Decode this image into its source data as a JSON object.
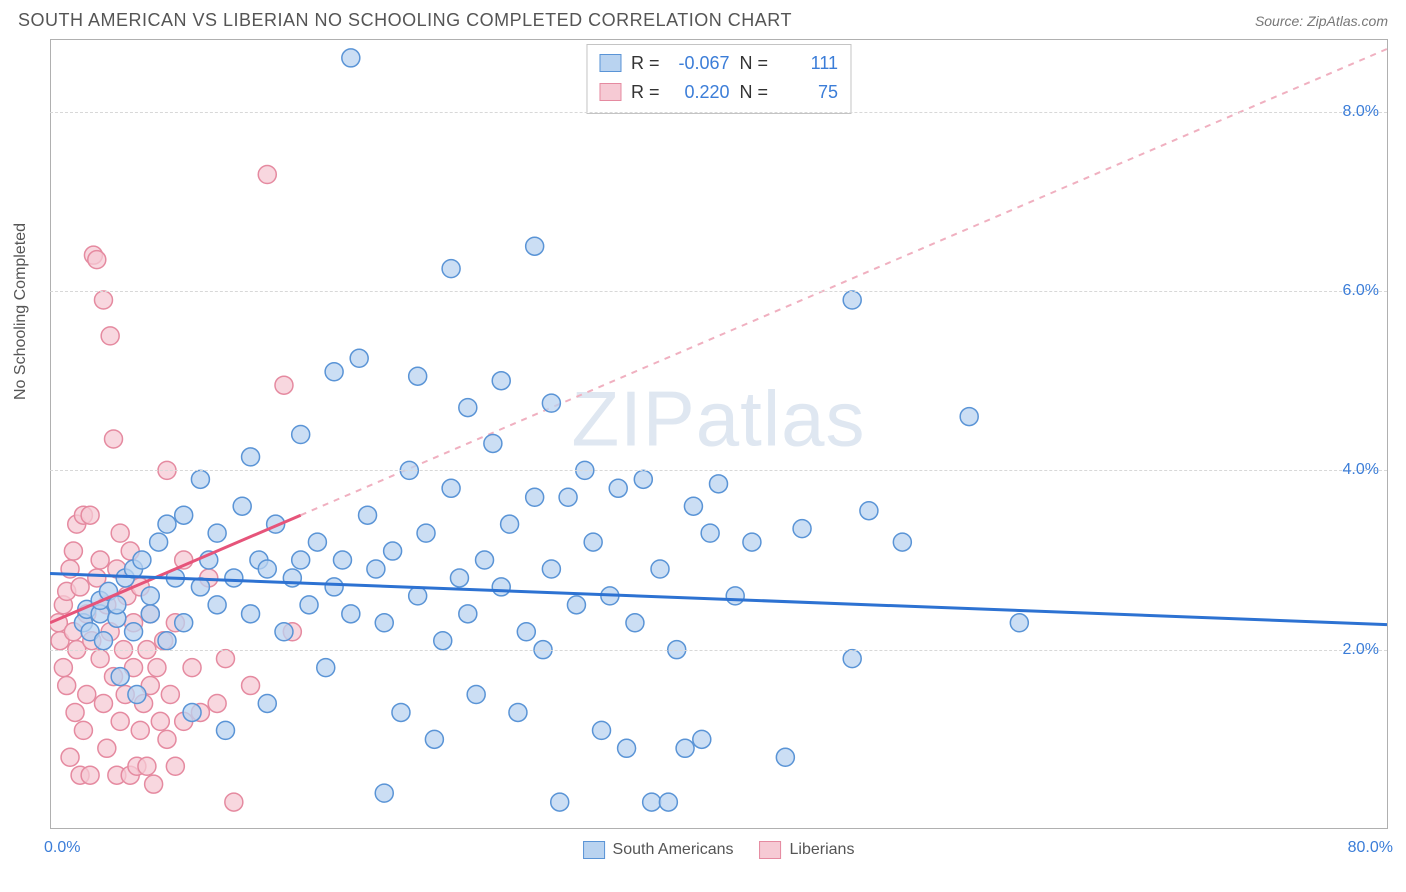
{
  "header": {
    "title": "SOUTH AMERICAN VS LIBERIAN NO SCHOOLING COMPLETED CORRELATION CHART",
    "source": "Source: ZipAtlas.com"
  },
  "watermark": {
    "zip": "ZIP",
    "atlas": "atlas"
  },
  "chart": {
    "type": "scatter",
    "ylabel": "No Schooling Completed",
    "background_color": "#ffffff",
    "grid_color": "#d8d8d8",
    "axis_color": "#b0b0b0",
    "tick_label_color": "#3b7dd8",
    "xlim": [
      0,
      80
    ],
    "ylim": [
      0,
      8.8
    ],
    "yticks": [
      {
        "v": 2.0,
        "label": "2.0%"
      },
      {
        "v": 4.0,
        "label": "4.0%"
      },
      {
        "v": 6.0,
        "label": "6.0%"
      },
      {
        "v": 8.0,
        "label": "8.0%"
      }
    ],
    "xticks": [
      {
        "v": 0,
        "label": "0.0%"
      },
      {
        "v": 80,
        "label": "80.0%"
      }
    ],
    "marker_radius": 9,
    "marker_stroke_width": 1.5,
    "series": {
      "south_americans": {
        "label": "South Americans",
        "fill": "#b9d3f0",
        "stroke": "#5a94d6",
        "r_value": "-0.067",
        "n_value": "111",
        "trend": {
          "x1": 0,
          "y1": 2.85,
          "x2": 80,
          "y2": 2.28,
          "color": "#2d72d2",
          "width": 3,
          "dash": "none"
        },
        "trend_ext": null,
        "points": [
          [
            2,
            2.3
          ],
          [
            2.2,
            2.45
          ],
          [
            2.4,
            2.2
          ],
          [
            3,
            2.4
          ],
          [
            3,
            2.55
          ],
          [
            3.2,
            2.1
          ],
          [
            3.5,
            2.65
          ],
          [
            4,
            2.35
          ],
          [
            4,
            2.5
          ],
          [
            4.2,
            1.7
          ],
          [
            4.5,
            2.8
          ],
          [
            5,
            2.2
          ],
          [
            5,
            2.9
          ],
          [
            5.2,
            1.5
          ],
          [
            5.5,
            3.0
          ],
          [
            6,
            2.4
          ],
          [
            6,
            2.6
          ],
          [
            6.5,
            3.2
          ],
          [
            7,
            2.1
          ],
          [
            7,
            3.4
          ],
          [
            7.5,
            2.8
          ],
          [
            8,
            3.5
          ],
          [
            8,
            2.3
          ],
          [
            8.5,
            1.3
          ],
          [
            9,
            3.9
          ],
          [
            9,
            2.7
          ],
          [
            9.5,
            3.0
          ],
          [
            10,
            2.5
          ],
          [
            10,
            3.3
          ],
          [
            10.5,
            1.1
          ],
          [
            11,
            2.8
          ],
          [
            11.5,
            3.6
          ],
          [
            12,
            2.4
          ],
          [
            12,
            4.15
          ],
          [
            12.5,
            3.0
          ],
          [
            13,
            1.4
          ],
          [
            13,
            2.9
          ],
          [
            13.5,
            3.4
          ],
          [
            14,
            2.2
          ],
          [
            14.5,
            2.8
          ],
          [
            15,
            4.4
          ],
          [
            15,
            3.0
          ],
          [
            15.5,
            2.5
          ],
          [
            16,
            3.2
          ],
          [
            16.5,
            1.8
          ],
          [
            17,
            2.7
          ],
          [
            17,
            5.1
          ],
          [
            17.5,
            3.0
          ],
          [
            18,
            2.4
          ],
          [
            18,
            8.6
          ],
          [
            18.5,
            5.25
          ],
          [
            19,
            3.5
          ],
          [
            19.5,
            2.9
          ],
          [
            20,
            2.3
          ],
          [
            20,
            0.4
          ],
          [
            20.5,
            3.1
          ],
          [
            21,
            1.3
          ],
          [
            21.5,
            4.0
          ],
          [
            22,
            2.6
          ],
          [
            22,
            5.05
          ],
          [
            22.5,
            3.3
          ],
          [
            23,
            1.0
          ],
          [
            23.5,
            2.1
          ],
          [
            24,
            3.8
          ],
          [
            24,
            6.25
          ],
          [
            24.5,
            2.8
          ],
          [
            25,
            4.7
          ],
          [
            25,
            2.4
          ],
          [
            25.5,
            1.5
          ],
          [
            26,
            3.0
          ],
          [
            26.5,
            4.3
          ],
          [
            27,
            2.7
          ],
          [
            27,
            5.0
          ],
          [
            27.5,
            3.4
          ],
          [
            28,
            1.3
          ],
          [
            28.5,
            2.2
          ],
          [
            29,
            6.5
          ],
          [
            29,
            3.7
          ],
          [
            29.5,
            2.0
          ],
          [
            30,
            4.75
          ],
          [
            30,
            2.9
          ],
          [
            30.5,
            0.3
          ],
          [
            31,
            3.7
          ],
          [
            31.5,
            2.5
          ],
          [
            32,
            4.0
          ],
          [
            32.5,
            3.2
          ],
          [
            33,
            1.1
          ],
          [
            33.5,
            2.6
          ],
          [
            34,
            3.8
          ],
          [
            34.5,
            0.9
          ],
          [
            35,
            2.3
          ],
          [
            35.5,
            3.9
          ],
          [
            36,
            0.3
          ],
          [
            36.5,
            2.9
          ],
          [
            37,
            0.3
          ],
          [
            37.5,
            2.0
          ],
          [
            38,
            0.9
          ],
          [
            38.5,
            3.6
          ],
          [
            39,
            1.0
          ],
          [
            39.5,
            3.3
          ],
          [
            41,
            2.6
          ],
          [
            42,
            3.2
          ],
          [
            44,
            0.8
          ],
          [
            45,
            3.35
          ],
          [
            48,
            5.9
          ],
          [
            49,
            3.55
          ],
          [
            51,
            3.2
          ],
          [
            55,
            4.6
          ],
          [
            58,
            2.3
          ],
          [
            48,
            1.9
          ],
          [
            40,
            3.85
          ]
        ]
      },
      "liberians": {
        "label": "Liberians",
        "fill": "#f6cad4",
        "stroke": "#e58aa0",
        "r_value": "0.220",
        "n_value": "75",
        "trend": {
          "x1": 0,
          "y1": 2.3,
          "x2": 15,
          "y2": 3.5,
          "color": "#e6547a",
          "width": 3,
          "dash": "none"
        },
        "trend_ext": {
          "x1": 15,
          "y1": 3.5,
          "x2": 80,
          "y2": 8.7,
          "color": "#f0b0c0",
          "width": 2,
          "dash": "6,6"
        },
        "points": [
          [
            0.5,
            2.3
          ],
          [
            0.6,
            2.1
          ],
          [
            0.8,
            1.8
          ],
          [
            0.8,
            2.5
          ],
          [
            1.0,
            2.65
          ],
          [
            1.0,
            1.6
          ],
          [
            1.2,
            2.9
          ],
          [
            1.2,
            0.8
          ],
          [
            1.4,
            2.2
          ],
          [
            1.4,
            3.1
          ],
          [
            1.5,
            1.3
          ],
          [
            1.6,
            3.4
          ],
          [
            1.6,
            2.0
          ],
          [
            1.8,
            2.7
          ],
          [
            1.8,
            0.6
          ],
          [
            2.0,
            1.1
          ],
          [
            2.0,
            3.5
          ],
          [
            2.2,
            2.4
          ],
          [
            2.2,
            1.5
          ],
          [
            2.4,
            3.5
          ],
          [
            2.4,
            0.6
          ],
          [
            2.5,
            2.1
          ],
          [
            2.6,
            6.4
          ],
          [
            2.8,
            6.35
          ],
          [
            2.8,
            2.8
          ],
          [
            3.0,
            1.9
          ],
          [
            3.0,
            3.0
          ],
          [
            3.2,
            5.9
          ],
          [
            3.2,
            1.4
          ],
          [
            3.4,
            2.5
          ],
          [
            3.4,
            0.9
          ],
          [
            3.6,
            5.5
          ],
          [
            3.6,
            2.2
          ],
          [
            3.8,
            1.7
          ],
          [
            3.8,
            4.35
          ],
          [
            4.0,
            2.9
          ],
          [
            4.0,
            0.6
          ],
          [
            4.2,
            1.2
          ],
          [
            4.2,
            3.3
          ],
          [
            4.4,
            2.0
          ],
          [
            4.5,
            1.5
          ],
          [
            4.6,
            2.6
          ],
          [
            4.8,
            0.6
          ],
          [
            4.8,
            3.1
          ],
          [
            5.0,
            1.8
          ],
          [
            5.0,
            2.3
          ],
          [
            5.2,
            0.7
          ],
          [
            5.4,
            1.1
          ],
          [
            5.4,
            2.7
          ],
          [
            5.6,
            1.4
          ],
          [
            5.8,
            2.0
          ],
          [
            5.8,
            0.7
          ],
          [
            6.0,
            1.6
          ],
          [
            6.0,
            2.4
          ],
          [
            6.2,
            0.5
          ],
          [
            6.4,
            1.8
          ],
          [
            6.6,
            1.2
          ],
          [
            6.8,
            2.1
          ],
          [
            7.0,
            4.0
          ],
          [
            7.0,
            1.0
          ],
          [
            7.2,
            1.5
          ],
          [
            7.5,
            0.7
          ],
          [
            7.5,
            2.3
          ],
          [
            8.0,
            1.2
          ],
          [
            8.0,
            3.0
          ],
          [
            8.5,
            1.8
          ],
          [
            9.0,
            1.3
          ],
          [
            9.5,
            2.8
          ],
          [
            10.0,
            1.4
          ],
          [
            10.5,
            1.9
          ],
          [
            11.0,
            0.3
          ],
          [
            12.0,
            1.6
          ],
          [
            13.0,
            7.3
          ],
          [
            14.0,
            4.95
          ],
          [
            14.5,
            2.2
          ]
        ]
      }
    },
    "stats_legend": {
      "r_label": "R =",
      "n_label": "N ="
    },
    "series_legend_order": [
      "south_americans",
      "liberians"
    ]
  }
}
